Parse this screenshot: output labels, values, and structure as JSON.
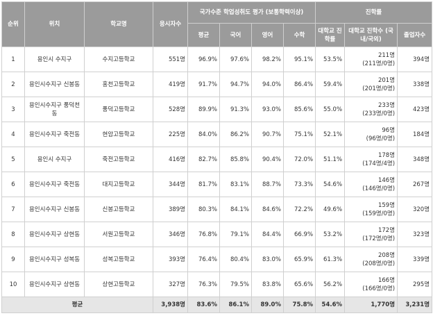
{
  "headers": {
    "rank": "순위",
    "location": "위치",
    "school": "학교명",
    "examinees": "응시자수",
    "assessment_group": "국가수준 학업성취도 평가 (보통학력이상)",
    "avg": "평균",
    "korean": "국어",
    "english": "영어",
    "math": "수학",
    "advancement_group": "진학률",
    "univ_rate": "대학교 진학률",
    "univ_count": "대학교 진학수 (국내/국외)",
    "graduates": "졸업자수"
  },
  "rows": [
    {
      "rank": "1",
      "location": "용인시 수지구",
      "school": "수지고등학교",
      "examinees": "551명",
      "avg": "96.9%",
      "korean": "97.6%",
      "english": "98.2%",
      "math": "95.1%",
      "univ_rate": "53.5%",
      "univ_count": "211명",
      "univ_split": "(211명/0명)",
      "graduates": "394명"
    },
    {
      "rank": "2",
      "location": "용인시수지구 신봉동",
      "school": "홍천고등학교",
      "examinees": "419명",
      "avg": "91.7%",
      "korean": "94.7%",
      "english": "94.0%",
      "math": "86.4%",
      "univ_rate": "59.4%",
      "univ_count": "201명",
      "univ_split": "(201명/0명)",
      "graduates": "338명"
    },
    {
      "rank": "3",
      "location": "용인시수지구 풍덕천동",
      "school": "풍덕고등학교",
      "examinees": "528명",
      "avg": "89.9%",
      "korean": "91.3%",
      "english": "93.0%",
      "math": "85.6%",
      "univ_rate": "55.0%",
      "univ_count": "233명",
      "univ_split": "(233명/0명)",
      "graduates": "423명"
    },
    {
      "rank": "4",
      "location": "용인시수지구 죽전동",
      "school": "현암고등학교",
      "examinees": "225명",
      "avg": "84.0%",
      "korean": "86.2%",
      "english": "90.7%",
      "math": "75.1%",
      "univ_rate": "52.1%",
      "univ_count": "96명",
      "univ_split": "(96명/0명)",
      "graduates": "184명"
    },
    {
      "rank": "5",
      "location": "용인시 수지구",
      "school": "죽전고등학교",
      "examinees": "416명",
      "avg": "82.7%",
      "korean": "85.8%",
      "english": "90.4%",
      "math": "72.0%",
      "univ_rate": "51.1%",
      "univ_count": "178명",
      "univ_split": "(174명/4명)",
      "graduates": "348명"
    },
    {
      "rank": "6",
      "location": "용인시수지구 죽전동",
      "school": "대지고등학교",
      "examinees": "344명",
      "avg": "81.7%",
      "korean": "83.1%",
      "english": "88.7%",
      "math": "73.3%",
      "univ_rate": "54.6%",
      "univ_count": "146명",
      "univ_split": "(146명/0명)",
      "graduates": "267명"
    },
    {
      "rank": "7",
      "location": "용인시수지구 신봉동",
      "school": "신봉고등학교",
      "examinees": "389명",
      "avg": "80.3%",
      "korean": "84.1%",
      "english": "84.6%",
      "math": "72.2%",
      "univ_rate": "49.6%",
      "univ_count": "159명",
      "univ_split": "(159명/0명)",
      "graduates": "320명"
    },
    {
      "rank": "8",
      "location": "용인시수지구 상현동",
      "school": "서원고등학교",
      "examinees": "346명",
      "avg": "76.8%",
      "korean": "79.1%",
      "english": "84.4%",
      "math": "66.9%",
      "univ_rate": "53.2%",
      "univ_count": "172명",
      "univ_split": "(172명/0명)",
      "graduates": "323명"
    },
    {
      "rank": "9",
      "location": "용인시수지구 성복동",
      "school": "성복고등학교",
      "examinees": "393명",
      "avg": "76.4%",
      "korean": "80.4%",
      "english": "83.0%",
      "math": "65.9%",
      "univ_rate": "61.3%",
      "univ_count": "208명",
      "univ_split": "(208명/0명)",
      "graduates": "339명"
    },
    {
      "rank": "10",
      "location": "용인시수지구 상현동",
      "school": "상현고등학교",
      "examinees": "327명",
      "avg": "76.3%",
      "korean": "79.5%",
      "english": "83.8%",
      "math": "65.6%",
      "univ_rate": "56.2%",
      "univ_count": "166명",
      "univ_split": "(166명/0명)",
      "graduates": "295명"
    }
  ],
  "totals": {
    "label": "평균",
    "examinees": "3,938명",
    "avg": "83.6%",
    "korean": "86.1%",
    "english": "89.0%",
    "math": "75.8%",
    "univ_rate": "54.6%",
    "univ_count": "1,770명",
    "graduates": "3,231명"
  },
  "colors": {
    "header_bg": "#9b9b9b",
    "header_text": "#ffffff",
    "total_bg": "#e6e6e6",
    "border": "#cfcfcf"
  }
}
